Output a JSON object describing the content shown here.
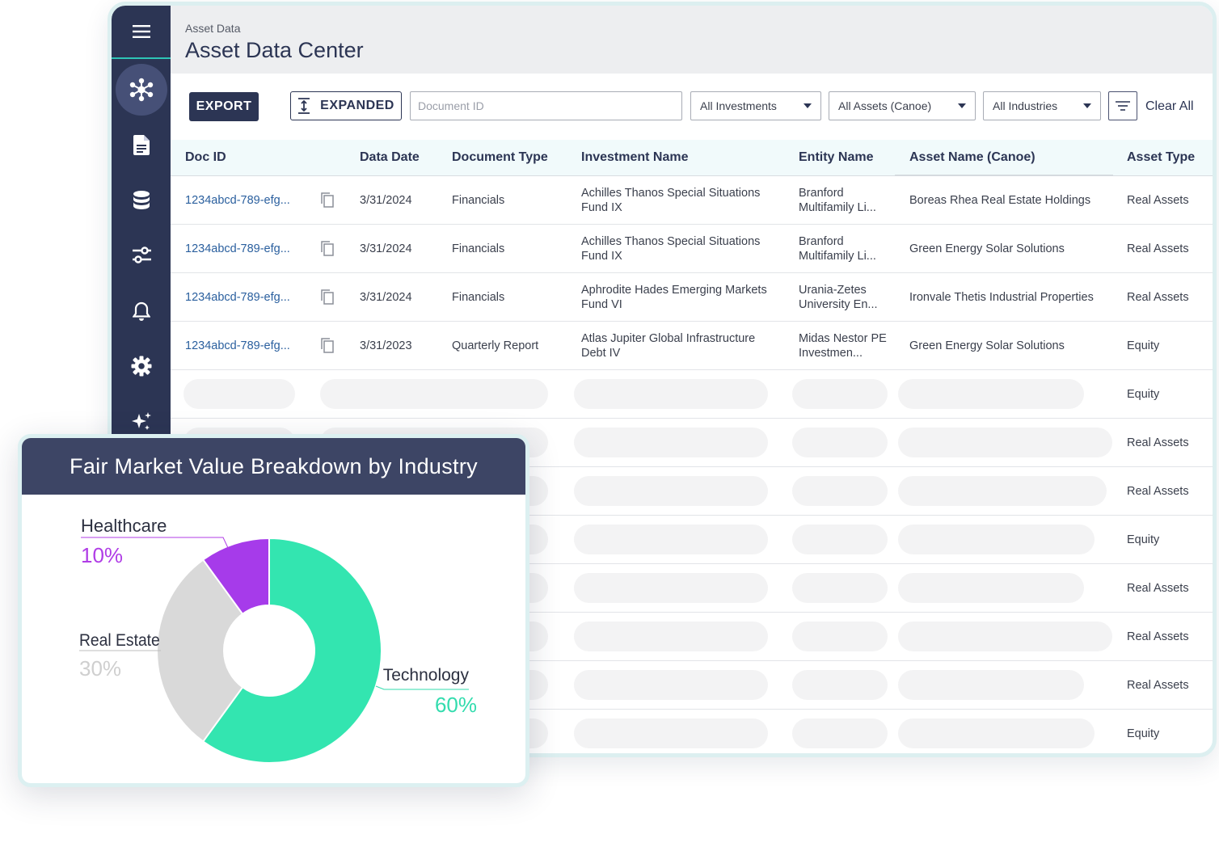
{
  "header": {
    "breadcrumb": "Asset Data",
    "title": "Asset Data Center"
  },
  "sidebar": {
    "items": [
      {
        "name": "menu-icon"
      },
      {
        "name": "hub-icon",
        "active": true
      },
      {
        "name": "document-icon"
      },
      {
        "name": "database-icon"
      },
      {
        "name": "sliders-icon"
      },
      {
        "name": "bell-icon"
      },
      {
        "name": "gear-icon"
      },
      {
        "name": "sparkle-icon"
      }
    ]
  },
  "toolbar": {
    "export_label": "EXPORT",
    "expanded_label": "EXPANDED",
    "search_placeholder": "Document ID",
    "investments_select": "All Investments",
    "assets_select": "All Assets (Canoe)",
    "industries_select": "All Industries",
    "clear_all_label": "Clear All"
  },
  "table": {
    "columns": [
      "Doc ID",
      "Data Date",
      "Document Type",
      "Investment Name",
      "Entity Name",
      "Asset Name (Canoe)",
      "Asset Type"
    ],
    "rows": [
      {
        "doc_id": "1234abcd-789-efg...",
        "date": "3/31/2024",
        "type": "Financials",
        "investment": "Achilles Thanos Special Situations Fund IX",
        "entity": "Branford Multifamily Li...",
        "asset": "Boreas Rhea Real Estate Holdings",
        "asset_type": "Real Assets"
      },
      {
        "doc_id": "1234abcd-789-efg...",
        "date": "3/31/2024",
        "type": "Financials",
        "investment": "Achilles Thanos Special Situations Fund IX",
        "entity": "Branford Multifamily Li...",
        "asset": "Green Energy Solar Solutions",
        "asset_type": "Real Assets"
      },
      {
        "doc_id": "1234abcd-789-efg...",
        "date": "3/31/2024",
        "type": "Financials",
        "investment": "Aphrodite Hades Emerging Markets Fund VI",
        "entity": "Urania-Zetes University En...",
        "asset": "Ironvale Thetis Industrial Properties",
        "asset_type": "Real Assets"
      },
      {
        "doc_id": "1234abcd-789-efg...",
        "date": "3/31/2023",
        "type": "Quarterly Report",
        "investment": "Atlas Jupiter Global Infrastructure Debt IV",
        "entity": "Midas Nestor PE Investmen...",
        "asset": "Green Energy Solar Solutions",
        "asset_type": "Equity"
      }
    ],
    "loading_rows_asset_types": [
      "Equity",
      "Real Assets",
      "Real Assets",
      "Equity",
      "Real Assets",
      "Real Assets",
      "Real Assets",
      "Equity"
    ]
  },
  "chart_card": {
    "title": "Fair Market Value Breakdown by Industry"
  },
  "chart_data": {
    "type": "pie",
    "title": "Fair Market Value Breakdown by Industry",
    "donut": true,
    "categories": [
      "Technology",
      "Real Estate",
      "Healthcare"
    ],
    "values": [
      60,
      30,
      10
    ],
    "value_labels": [
      "60%",
      "30%",
      "10%"
    ],
    "colors": [
      "#33e5b0",
      "#d9d9d9",
      "#a63bea"
    ],
    "label_colors": [
      "#33dcae",
      "#cfcfcf",
      "#b03de6"
    ]
  }
}
